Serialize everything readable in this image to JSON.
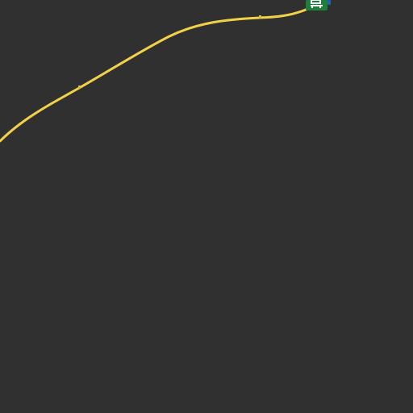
{
  "map": {
    "background_color": "#303030",
    "route": {
      "color": "#f2d14a",
      "tick_color": "#d9bf4a"
    },
    "marker": {
      "icon": "bus-stop-icon",
      "color": "#1e7f3a",
      "accent_color": "#1e62b0"
    }
  }
}
